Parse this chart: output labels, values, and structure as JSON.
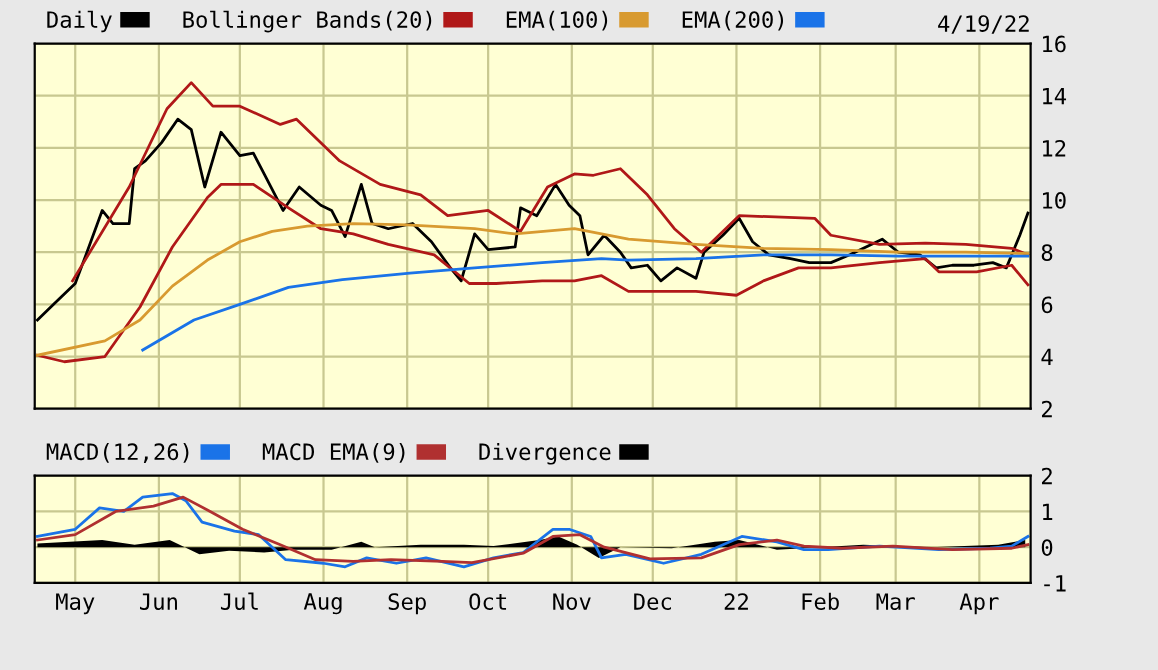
{
  "chart_data": [
    {
      "type": "line",
      "grid": true,
      "legend": "top",
      "tick_labels": "y",
      "annotations": [
        "4/19/22"
      ],
      "xlim": [
        "2021-04-16",
        "2022-04-20"
      ],
      "ylim": [
        2,
        16
      ],
      "yticks": [
        2,
        4,
        6,
        8,
        10,
        12,
        14,
        16
      ],
      "xticks": [
        {
          "value": "2021-05-01",
          "label": null
        },
        {
          "value": "2021-06-01",
          "label": null
        },
        {
          "value": "2021-07-01",
          "label": null
        },
        {
          "value": "2021-08-01",
          "label": null
        },
        {
          "value": "2021-09-01",
          "label": null
        },
        {
          "value": "2021-10-01",
          "label": null
        },
        {
          "value": "2021-11-01",
          "label": null
        },
        {
          "value": "2021-12-01",
          "label": null
        },
        {
          "value": "2022-01-01",
          "label": null
        },
        {
          "value": "2022-02-01",
          "label": null
        },
        {
          "value": "2022-03-01",
          "label": null
        },
        {
          "value": "2022-04-01",
          "label": null
        }
      ],
      "series": [
        {
          "name": "Daily",
          "color": "#000000",
          "x": [
            "2021-04-17",
            "2021-04-23",
            "2021-05-01",
            "2021-05-05",
            "2021-05-11",
            "2021-05-15",
            "2021-05-21",
            "2021-05-23",
            "2021-05-27",
            "2021-06-02",
            "2021-06-08",
            "2021-06-13",
            "2021-06-18",
            "2021-06-24",
            "2021-07-01",
            "2021-07-06",
            "2021-07-10",
            "2021-07-17",
            "2021-07-23",
            "2021-07-31",
            "2021-08-04",
            "2021-08-09",
            "2021-08-15",
            "2021-08-19",
            "2021-08-25",
            "2021-09-03",
            "2021-09-10",
            "2021-09-17",
            "2021-09-21",
            "2021-09-26",
            "2021-10-01",
            "2021-10-11",
            "2021-10-13",
            "2021-10-19",
            "2021-10-26",
            "2021-10-31",
            "2021-11-04",
            "2021-11-07",
            "2021-11-13",
            "2021-11-19",
            "2021-11-23",
            "2021-11-29",
            "2021-12-04",
            "2021-12-10",
            "2021-12-17",
            "2021-12-20",
            "2021-12-27",
            "2022-01-02",
            "2022-01-07",
            "2022-01-13",
            "2022-01-21",
            "2022-01-28",
            "2022-02-05",
            "2022-02-12",
            "2022-02-24",
            "2022-03-02",
            "2022-03-10",
            "2022-03-16",
            "2022-03-22",
            "2022-03-30",
            "2022-04-06",
            "2022-04-11",
            "2022-04-16",
            "2022-04-19"
          ],
          "values": [
            5.4,
            6.0,
            6.8,
            7.9,
            9.6,
            9.1,
            9.1,
            11.2,
            11.5,
            12.2,
            13.1,
            12.7,
            10.5,
            12.6,
            11.7,
            11.8,
            11.0,
            9.6,
            10.5,
            9.8,
            9.6,
            8.6,
            10.6,
            9.1,
            8.9,
            9.1,
            8.4,
            7.4,
            6.9,
            8.7,
            8.1,
            8.2,
            9.7,
            9.4,
            10.6,
            9.8,
            9.4,
            7.9,
            8.65,
            8.0,
            7.4,
            7.5,
            6.9,
            7.4,
            7.0,
            8.0,
            8.65,
            9.3,
            8.4,
            7.9,
            7.75,
            7.6,
            7.6,
            7.9,
            8.5,
            8.0,
            7.9,
            7.4,
            7.5,
            7.5,
            7.6,
            7.4,
            8.65,
            9.5
          ]
        },
        {
          "name": "Bollinger Bands(20)",
          "color": "#b01818",
          "x": [
            "2021-04-30",
            "2021-05-21",
            "2021-06-04",
            "2021-06-13",
            "2021-06-21",
            "2021-07-01",
            "2021-07-16",
            "2021-07-22",
            "2021-08-07",
            "2021-08-22",
            "2021-09-06",
            "2021-09-16",
            "2021-10-01",
            "2021-10-13",
            "2021-10-23",
            "2021-11-02",
            "2021-11-09",
            "2021-11-19",
            "2021-11-29",
            "2021-12-09",
            "2021-12-19",
            "2022-01-02",
            "2022-01-30",
            "2022-02-05",
            "2022-02-23",
            "2022-03-12",
            "2022-03-27",
            "2022-04-13",
            "2022-04-19"
          ],
          "values": [
            6.9,
            10.5,
            13.5,
            14.5,
            13.6,
            13.6,
            12.9,
            13.1,
            11.5,
            10.6,
            10.2,
            9.4,
            9.6,
            8.8,
            10.5,
            11.0,
            10.95,
            11.2,
            10.2,
            8.9,
            8.0,
            9.4,
            9.3,
            8.65,
            8.3,
            8.35,
            8.3,
            8.15,
            7.9
          ]
        },
        {
          "color": "#b01818",
          "x": [
            "2021-04-17",
            "2021-04-27",
            "2021-05-12",
            "2021-05-25",
            "2021-06-06",
            "2021-06-19",
            "2021-06-24",
            "2021-07-06",
            "2021-07-19",
            "2021-07-31",
            "2021-08-12",
            "2021-08-25",
            "2021-09-11",
            "2021-09-24",
            "2021-10-04",
            "2021-10-21",
            "2021-11-02",
            "2021-11-12",
            "2021-11-22",
            "2021-12-17",
            "2022-01-01",
            "2022-01-11",
            "2022-01-24",
            "2022-02-05",
            "2022-02-23",
            "2022-03-12",
            "2022-03-17",
            "2022-03-31",
            "2022-04-13",
            "2022-04-19"
          ],
          "values": [
            4.05,
            3.8,
            4.0,
            5.9,
            8.2,
            10.1,
            10.6,
            10.6,
            9.7,
            8.9,
            8.7,
            8.3,
            7.9,
            6.8,
            6.8,
            6.9,
            6.9,
            7.1,
            6.5,
            6.5,
            6.35,
            6.9,
            7.4,
            7.4,
            7.6,
            7.75,
            7.25,
            7.25,
            7.5,
            6.75
          ]
        },
        {
          "name": "EMA(100)",
          "color": "#d89a30",
          "x": [
            "2021-04-17",
            "2021-05-12",
            "2021-05-25",
            "2021-06-06",
            "2021-06-19",
            "2021-07-01",
            "2021-07-13",
            "2021-07-26",
            "2021-08-12",
            "2021-09-01",
            "2021-09-26",
            "2021-10-11",
            "2021-11-02",
            "2021-11-22",
            "2021-12-17",
            "2022-01-11",
            "2022-02-05",
            "2022-03-02",
            "2022-03-27",
            "2022-04-19"
          ],
          "values": [
            4.05,
            4.6,
            5.4,
            6.7,
            7.7,
            8.4,
            8.8,
            9.0,
            9.1,
            9.05,
            8.9,
            8.7,
            8.9,
            8.5,
            8.3,
            8.15,
            8.1,
            8.0,
            8.0,
            7.95
          ]
        },
        {
          "name": "EMA(200)",
          "color": "#1a73e8",
          "x": [
            "2021-05-26",
            "2021-06-14",
            "2021-07-01",
            "2021-07-19",
            "2021-08-08",
            "2021-09-02",
            "2021-09-26",
            "2021-10-21",
            "2021-11-12",
            "2021-11-22",
            "2021-12-17",
            "2022-01-11",
            "2022-02-05",
            "2022-03-02",
            "2022-04-19"
          ],
          "values": [
            4.25,
            5.4,
            6.0,
            6.65,
            6.95,
            7.2,
            7.4,
            7.6,
            7.75,
            7.7,
            7.75,
            7.9,
            7.9,
            7.85,
            7.85
          ]
        }
      ]
    },
    {
      "type": "line",
      "grid": true,
      "legend": "top",
      "xlim": [
        "2021-04-16",
        "2022-04-20"
      ],
      "ylim": [
        -1,
        2
      ],
      "yticks": [
        -1,
        0,
        1,
        2
      ],
      "xticks": [
        {
          "value": "2021-05-01",
          "label": "May"
        },
        {
          "value": "2021-06-01",
          "label": "Jun"
        },
        {
          "value": "2021-07-01",
          "label": "Jul"
        },
        {
          "value": "2021-08-01",
          "label": "Aug"
        },
        {
          "value": "2021-09-01",
          "label": "Sep"
        },
        {
          "value": "2021-10-01",
          "label": "Oct"
        },
        {
          "value": "2021-11-01",
          "label": "Nov"
        },
        {
          "value": "2021-12-01",
          "label": "Dec"
        },
        {
          "value": "2022-01-01",
          "label": "22"
        },
        {
          "value": "2022-02-01",
          "label": "Feb"
        },
        {
          "value": "2022-03-01",
          "label": "Mar"
        },
        {
          "value": "2022-04-01",
          "label": "Apr"
        }
      ],
      "series": [
        {
          "name": "MACD(12,26)",
          "color": "#1a73e8",
          "x": [
            "2021-04-17",
            "2021-05-01",
            "2021-05-10",
            "2021-05-19",
            "2021-05-26",
            "2021-06-06",
            "2021-06-11",
            "2021-06-17",
            "2021-06-29",
            "2021-07-08",
            "2021-07-18",
            "2021-08-01",
            "2021-08-09",
            "2021-08-17",
            "2021-08-28",
            "2021-09-08",
            "2021-09-22",
            "2021-10-03",
            "2021-10-14",
            "2021-10-25",
            "2021-10-31",
            "2021-11-08",
            "2021-11-12",
            "2021-11-21",
            "2021-12-05",
            "2021-12-19",
            "2022-01-03",
            "2022-01-16",
            "2022-01-26",
            "2022-02-04",
            "2022-02-23",
            "2022-03-17",
            "2022-04-05",
            "2022-04-13",
            "2022-04-19"
          ],
          "values": [
            0.3,
            0.5,
            1.1,
            1.0,
            1.4,
            1.5,
            1.3,
            0.7,
            0.45,
            0.35,
            -0.35,
            -0.45,
            -0.55,
            -0.3,
            -0.45,
            -0.3,
            -0.55,
            -0.3,
            -0.15,
            0.5,
            0.5,
            0.3,
            -0.3,
            -0.2,
            -0.45,
            -0.2,
            0.3,
            0.15,
            -0.07,
            -0.07,
            0.03,
            -0.07,
            -0.03,
            0.03,
            0.3
          ]
        },
        {
          "name": "MACD EMA(9)",
          "color": "#b03030",
          "x": [
            "2021-04-17",
            "2021-05-01",
            "2021-05-16",
            "2021-05-30",
            "2021-06-10",
            "2021-06-20",
            "2021-07-02",
            "2021-07-16",
            "2021-07-29",
            "2021-08-12",
            "2021-08-26",
            "2021-09-14",
            "2021-09-25",
            "2021-10-14",
            "2021-10-25",
            "2021-11-04",
            "2021-11-13",
            "2021-11-30",
            "2021-12-19",
            "2022-01-02",
            "2022-01-16",
            "2022-01-26",
            "2022-02-09",
            "2022-02-28",
            "2022-03-22",
            "2022-04-13",
            "2022-04-19"
          ],
          "values": [
            0.2,
            0.35,
            1.0,
            1.15,
            1.4,
            1.0,
            0.5,
            0.07,
            -0.35,
            -0.4,
            -0.35,
            -0.4,
            -0.43,
            -0.17,
            0.3,
            0.35,
            0.0,
            -0.33,
            -0.3,
            0.07,
            0.2,
            0.03,
            -0.03,
            0.03,
            -0.07,
            -0.03,
            0.07
          ]
        },
        {
          "name": "Divergence",
          "type": "area",
          "color": "#000000",
          "x": [
            "2021-04-17",
            "2021-05-11",
            "2021-05-23",
            "2021-06-05",
            "2021-06-16",
            "2021-06-27",
            "2021-07-10",
            "2021-07-21",
            "2021-08-04",
            "2021-08-15",
            "2021-08-20",
            "2021-09-06",
            "2021-09-22",
            "2021-10-03",
            "2021-10-20",
            "2021-10-27",
            "2021-11-03",
            "2021-11-11",
            "2021-11-19",
            "2021-12-08",
            "2021-12-24",
            "2022-01-02",
            "2022-01-16",
            "2022-02-01",
            "2022-02-17",
            "2022-03-14",
            "2022-04-08",
            "2022-04-18"
          ],
          "values": [
            0.1,
            0.2,
            0.07,
            0.2,
            -0.2,
            -0.1,
            -0.15,
            -0.07,
            -0.07,
            0.15,
            0.0,
            0.07,
            0.07,
            0.03,
            0.2,
            0.3,
            0.07,
            -0.3,
            0.0,
            -0.03,
            0.15,
            0.2,
            -0.07,
            0.0,
            0.07,
            0.0,
            0.07,
            0.2
          ]
        }
      ]
    }
  ]
}
